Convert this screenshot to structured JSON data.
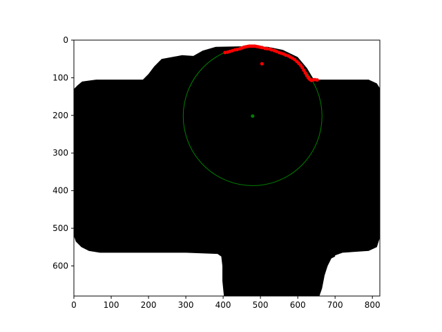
{
  "chart_data": {
    "type": "scatter",
    "title": "",
    "xlabel": "",
    "ylabel": "",
    "xlim": [
      0,
      820
    ],
    "ylim": [
      680,
      0
    ],
    "y_inverted": true,
    "grid": false,
    "x_ticks": [
      0,
      100,
      200,
      300,
      400,
      500,
      600,
      700,
      800
    ],
    "y_ticks": [
      0,
      100,
      200,
      300,
      400,
      500,
      600
    ],
    "background_image": {
      "description": "binary mask",
      "mask_color": "#000000",
      "background_color": "#ffffff",
      "outline": [
        [
          0,
          130
        ],
        [
          10,
          120
        ],
        [
          22,
          110
        ],
        [
          60,
          105
        ],
        [
          185,
          105
        ],
        [
          200,
          90
        ],
        [
          215,
          70
        ],
        [
          235,
          50
        ],
        [
          290,
          40
        ],
        [
          320,
          42
        ],
        [
          345,
          28
        ],
        [
          380,
          18
        ],
        [
          470,
          16
        ],
        [
          520,
          18
        ],
        [
          560,
          26
        ],
        [
          600,
          45
        ],
        [
          625,
          75
        ],
        [
          640,
          100
        ],
        [
          650,
          105
        ],
        [
          790,
          105
        ],
        [
          812,
          115
        ],
        [
          820,
          128
        ],
        [
          820,
          525
        ],
        [
          812,
          550
        ],
        [
          790,
          560
        ],
        [
          720,
          565
        ],
        [
          700,
          572
        ],
        [
          700,
          575
        ],
        [
          690,
          580
        ],
        [
          680,
          600
        ],
        [
          672,
          625
        ],
        [
          665,
          660
        ],
        [
          658,
          680
        ],
        [
          402,
          680
        ],
        [
          398,
          640
        ],
        [
          398,
          600
        ],
        [
          395,
          575
        ],
        [
          385,
          568
        ],
        [
          300,
          565
        ],
        [
          70,
          565
        ],
        [
          40,
          560
        ],
        [
          20,
          550
        ],
        [
          5,
          535
        ],
        [
          0,
          520
        ]
      ]
    },
    "circle": {
      "center": [
        479,
        202
      ],
      "radius": 186,
      "color": "#008000"
    },
    "center_point": {
      "x": 479,
      "y": 202,
      "color": "#008000"
    },
    "outlier_point": {
      "x": 504,
      "y": 63,
      "color": "#ff0000"
    },
    "series": [
      {
        "color": "#ff0000",
        "points": [
          [
            405,
            33
          ],
          [
            412,
            32
          ],
          [
            418,
            30
          ],
          [
            425,
            28
          ],
          [
            432,
            26
          ],
          [
            438,
            25
          ],
          [
            445,
            23
          ],
          [
            450,
            21
          ],
          [
            455,
            19
          ],
          [
            460,
            18
          ],
          [
            465,
            17
          ],
          [
            470,
            16
          ],
          [
            475,
            16
          ],
          [
            480,
            16
          ],
          [
            485,
            16
          ],
          [
            490,
            17
          ],
          [
            495,
            18
          ],
          [
            500,
            19
          ],
          [
            505,
            20
          ],
          [
            512,
            22
          ],
          [
            518,
            23
          ],
          [
            525,
            24
          ],
          [
            530,
            26
          ],
          [
            537,
            28
          ],
          [
            543,
            30
          ],
          [
            550,
            33
          ],
          [
            556,
            35
          ],
          [
            562,
            37
          ],
          [
            568,
            40
          ],
          [
            575,
            42
          ],
          [
            580,
            45
          ],
          [
            586,
            48
          ],
          [
            592,
            52
          ],
          [
            598,
            57
          ],
          [
            603,
            62
          ],
          [
            608,
            67
          ],
          [
            612,
            73
          ],
          [
            616,
            80
          ],
          [
            620,
            87
          ],
          [
            624,
            94
          ],
          [
            628,
            100
          ],
          [
            632,
            104
          ],
          [
            636,
            107
          ],
          [
            640,
            106
          ],
          [
            646,
            105
          ],
          [
            652,
            106
          ]
        ]
      }
    ]
  }
}
